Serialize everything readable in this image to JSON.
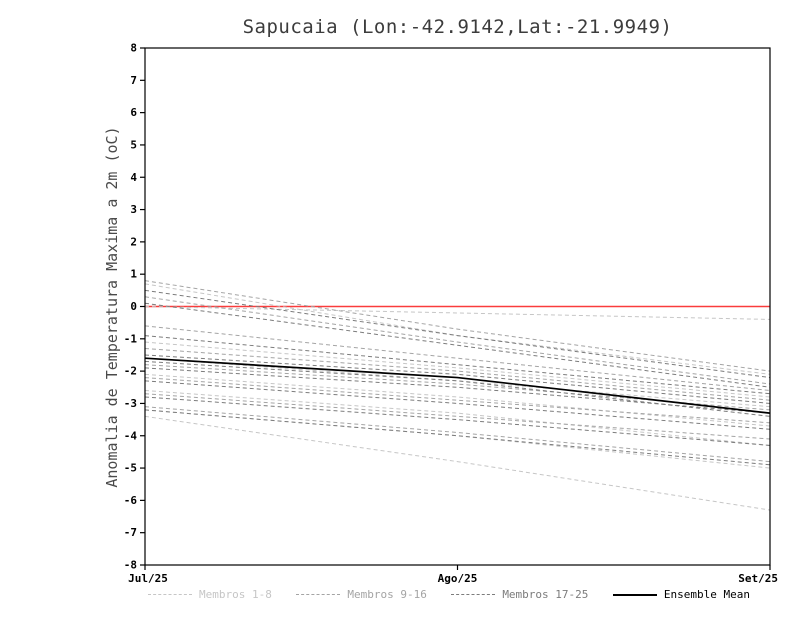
{
  "chart_data": {
    "type": "line",
    "title": "Sapucaia (Lon:-42.9142,Lat:-21.9949)",
    "ylabel": "Anomalia de Temperatura Maxima a 2m (oC)",
    "x_categories": [
      "Jul/25",
      "Ago/25",
      "Set/25"
    ],
    "ylim": [
      -8,
      8
    ],
    "ytick_step": 1,
    "grid": false,
    "legend_position": "bottom",
    "frame_color": "#000000",
    "zero_line": {
      "y": 0,
      "color": "#fa3c3c"
    },
    "groups": [
      {
        "name": "Membros 1-8",
        "color": "#c6c6c6",
        "dash": "4,3"
      },
      {
        "name": "Membros 9-16",
        "color": "#a4a4a4",
        "dash": "4,3"
      },
      {
        "name": "Membros 17-25",
        "color": "#7c7c7c",
        "dash": "4,3"
      }
    ],
    "members": [
      {
        "group": 0,
        "values": [
          0.0,
          -0.2,
          -0.4
        ]
      },
      {
        "group": 0,
        "values": [
          0.7,
          -0.9,
          -2.1
        ]
      },
      {
        "group": 0,
        "values": [
          -1.1,
          -1.9,
          -2.8
        ]
      },
      {
        "group": 0,
        "values": [
          -1.6,
          -2.3,
          -3.1
        ]
      },
      {
        "group": 0,
        "values": [
          -2.1,
          -2.8,
          -3.7
        ]
      },
      {
        "group": 0,
        "values": [
          -2.6,
          -3.3,
          -4.3
        ]
      },
      {
        "group": 0,
        "values": [
          -3.2,
          -4.0,
          -5.0
        ]
      },
      {
        "group": 0,
        "values": [
          -3.4,
          -4.8,
          -6.3
        ]
      },
      {
        "group": 1,
        "values": [
          0.8,
          -0.7,
          -2.0
        ]
      },
      {
        "group": 1,
        "values": [
          0.3,
          -1.1,
          -2.4
        ]
      },
      {
        "group": 1,
        "values": [
          -0.6,
          -1.6,
          -2.6
        ]
      },
      {
        "group": 1,
        "values": [
          -1.3,
          -2.0,
          -2.9
        ]
      },
      {
        "group": 1,
        "values": [
          -1.8,
          -2.4,
          -3.2
        ]
      },
      {
        "group": 1,
        "values": [
          -2.2,
          -2.9,
          -3.6
        ]
      },
      {
        "group": 1,
        "values": [
          -2.7,
          -3.4,
          -4.1
        ]
      },
      {
        "group": 1,
        "values": [
          -3.1,
          -3.9,
          -4.8
        ]
      },
      {
        "group": 2,
        "values": [
          0.5,
          -0.9,
          -2.2
        ]
      },
      {
        "group": 2,
        "values": [
          0.1,
          -1.2,
          -2.5
        ]
      },
      {
        "group": 2,
        "values": [
          -0.9,
          -1.8,
          -2.7
        ]
      },
      {
        "group": 2,
        "values": [
          -1.5,
          -2.1,
          -3.0
        ]
      },
      {
        "group": 2,
        "values": [
          -1.9,
          -2.5,
          -3.3
        ]
      },
      {
        "group": 2,
        "values": [
          -2.3,
          -3.0,
          -3.8
        ]
      },
      {
        "group": 2,
        "values": [
          -2.8,
          -3.5,
          -4.3
        ]
      },
      {
        "group": 2,
        "values": [
          -3.2,
          -4.0,
          -4.9
        ]
      },
      {
        "group": 2,
        "values": [
          -1.7,
          -2.3,
          -3.4
        ]
      }
    ],
    "ensemble_mean": {
      "name": "Ensemble Mean",
      "color": "#000000",
      "values": [
        -1.6,
        -2.2,
        -3.3
      ]
    }
  }
}
